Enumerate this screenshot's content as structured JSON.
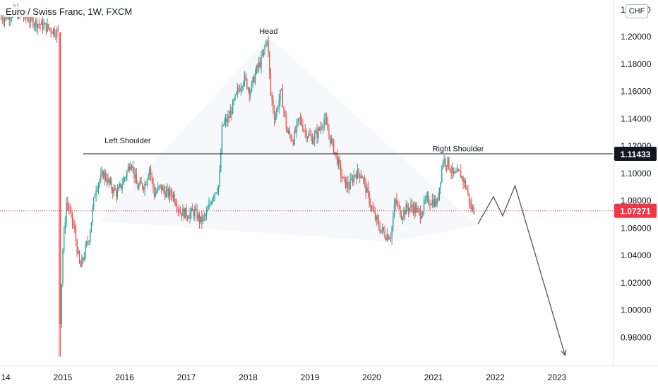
{
  "chart_data": {
    "type": "candlestick",
    "title": "Euro / Swiss Franc, 1W, FXCM",
    "currency": "CHF",
    "y_ticks": [
      "1.20000",
      "1.18000",
      "1.16000",
      "1.14000",
      "1.12000",
      "1.10000",
      "1.08000",
      "1.06000",
      "1.04000",
      "1.02000",
      "1.00000",
      "0.98000"
    ],
    "y_top_partial": "1",
    "y_top_partial_end": "0",
    "x_ticks": [
      "14",
      "2015",
      "2016",
      "2017",
      "2018",
      "2019",
      "2020",
      "2021",
      "2022",
      "2023"
    ],
    "ylim": [
      0.961,
      1.227
    ],
    "colors": {
      "up": "#26a69a",
      "down": "#ef5350",
      "line": "#131722",
      "price": "#f23645",
      "projection": "#555555"
    },
    "neckline": {
      "value": 1.11433,
      "label": "1.11433",
      "from": 2015.33,
      "to": 2024.0
    },
    "current_price": {
      "value": 1.07271,
      "label": "1.07271"
    },
    "annotations": [
      {
        "text": "Head",
        "x": 2018.33,
        "y": 1.2
      },
      {
        "text": "Left Shoulder",
        "x": 2016.05,
        "y": 1.12
      },
      {
        "text": "Right Shoulder",
        "x": 2021.4,
        "y": 1.114
      }
    ],
    "projection": [
      {
        "x": 2021.72,
        "y": 1.063
      },
      {
        "x": 2021.97,
        "y": 1.083
      },
      {
        "x": 2022.12,
        "y": 1.069
      },
      {
        "x": 2022.32,
        "y": 1.091
      },
      {
        "x": 2023.13,
        "y": 0.967
      }
    ],
    "price_path": [
      [
        2014.0,
        1.213
      ],
      [
        2014.25,
        1.218
      ],
      [
        2014.5,
        1.212
      ],
      [
        2014.75,
        1.207
      ],
      [
        2014.95,
        1.203
      ],
      [
        2014.97,
        0.985
      ],
      [
        2015.02,
        1.045
      ],
      [
        2015.08,
        1.08
      ],
      [
        2015.2,
        1.06
      ],
      [
        2015.3,
        1.03
      ],
      [
        2015.45,
        1.055
      ],
      [
        2015.55,
        1.09
      ],
      [
        2015.68,
        1.1
      ],
      [
        2015.8,
        1.09
      ],
      [
        2015.9,
        1.085
      ],
      [
        2016.05,
        1.1
      ],
      [
        2016.12,
        1.11
      ],
      [
        2016.22,
        1.09
      ],
      [
        2016.35,
        1.092
      ],
      [
        2016.42,
        1.105
      ],
      [
        2016.5,
        1.085
      ],
      [
        2016.6,
        1.09
      ],
      [
        2016.7,
        1.085
      ],
      [
        2016.8,
        1.085
      ],
      [
        2016.92,
        1.072
      ],
      [
        2017.05,
        1.07
      ],
      [
        2017.15,
        1.072
      ],
      [
        2017.25,
        1.065
      ],
      [
        2017.35,
        1.07
      ],
      [
        2017.45,
        1.085
      ],
      [
        2017.55,
        1.092
      ],
      [
        2017.6,
        1.135
      ],
      [
        2017.7,
        1.14
      ],
      [
        2017.85,
        1.16
      ],
      [
        2017.95,
        1.17
      ],
      [
        2018.05,
        1.16
      ],
      [
        2018.15,
        1.175
      ],
      [
        2018.25,
        1.185
      ],
      [
        2018.33,
        1.2
      ],
      [
        2018.38,
        1.16
      ],
      [
        2018.45,
        1.14
      ],
      [
        2018.55,
        1.16
      ],
      [
        2018.65,
        1.13
      ],
      [
        2018.75,
        1.125
      ],
      [
        2018.85,
        1.14
      ],
      [
        2018.95,
        1.13
      ],
      [
        2019.05,
        1.125
      ],
      [
        2019.15,
        1.13
      ],
      [
        2019.25,
        1.14
      ],
      [
        2019.35,
        1.125
      ],
      [
        2019.45,
        1.112
      ],
      [
        2019.55,
        1.095
      ],
      [
        2019.65,
        1.09
      ],
      [
        2019.75,
        1.1
      ],
      [
        2019.85,
        1.1
      ],
      [
        2019.95,
        1.085
      ],
      [
        2020.05,
        1.07
      ],
      [
        2020.15,
        1.06
      ],
      [
        2020.25,
        1.055
      ],
      [
        2020.33,
        1.055
      ],
      [
        2020.4,
        1.08
      ],
      [
        2020.5,
        1.07
      ],
      [
        2020.6,
        1.075
      ],
      [
        2020.7,
        1.075
      ],
      [
        2020.8,
        1.07
      ],
      [
        2020.9,
        1.08
      ],
      [
        2021.0,
        1.08
      ],
      [
        2021.08,
        1.078
      ],
      [
        2021.17,
        1.11
      ],
      [
        2021.25,
        1.108
      ],
      [
        2021.35,
        1.098
      ],
      [
        2021.45,
        1.1
      ],
      [
        2021.55,
        1.09
      ],
      [
        2021.62,
        1.075
      ],
      [
        2021.67,
        1.073
      ]
    ]
  }
}
